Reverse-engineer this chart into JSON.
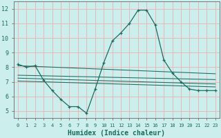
{
  "xlabel": "Humidex (Indice chaleur)",
  "background_color": "#cceeed",
  "grid_color": "#e8b8b8",
  "line_color": "#1a6b60",
  "xlim": [
    -0.5,
    23.5
  ],
  "ylim": [
    4.5,
    12.5
  ],
  "yticks": [
    5,
    6,
    7,
    8,
    9,
    10,
    11,
    12
  ],
  "xticks": [
    0,
    1,
    2,
    3,
    4,
    5,
    6,
    7,
    8,
    9,
    10,
    11,
    12,
    13,
    14,
    15,
    16,
    17,
    18,
    19,
    20,
    21,
    22,
    23
  ],
  "line1_x": [
    0,
    1,
    2,
    3,
    4,
    5,
    6,
    7,
    8,
    9,
    10,
    11,
    12,
    13,
    14,
    15,
    16,
    17,
    18,
    19,
    20,
    21,
    22,
    23
  ],
  "line1_y": [
    8.2,
    8.0,
    8.1,
    7.1,
    6.4,
    5.8,
    5.3,
    5.3,
    4.85,
    6.5,
    8.3,
    9.8,
    10.35,
    11.0,
    11.9,
    11.9,
    10.9,
    8.5,
    7.6,
    7.0,
    6.5,
    6.4,
    6.4,
    6.4
  ],
  "line2_x": [
    0,
    23
  ],
  "line2_y": [
    8.1,
    7.55
  ],
  "line3_x": [
    0,
    23
  ],
  "line3_y": [
    7.45,
    7.15
  ],
  "line4_x": [
    0,
    23
  ],
  "line4_y": [
    7.25,
    6.85
  ],
  "line5_x": [
    0,
    23
  ],
  "line5_y": [
    7.05,
    6.65
  ]
}
